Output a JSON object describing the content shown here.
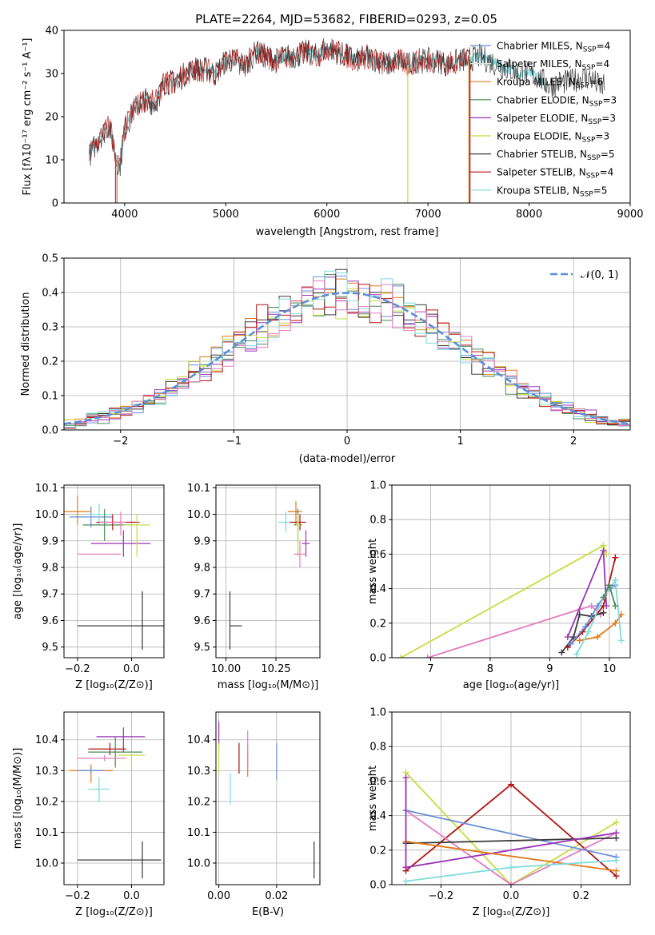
{
  "figure": {
    "title": "PLATE=2264, MJD=53682, FIBERID=0293, z=0.05"
  },
  "colors": {
    "Chabrier MILES": "#6a8fd8",
    "Salpeter MILES": "#e0e0e0",
    "Kroupa MILES": "#e07b1a",
    "Chabrier ELODIE": "#4a8a56",
    "Salpeter ELODIE": "#9a35b5",
    "Kroupa ELODIE": "#c8dc40",
    "Chabrier STELIB": "#3a3a3a",
    "Salpeter STELIB": "#b31212",
    "Kroupa STELIB": "#7fdcdc",
    "extra1": "#e37cbf",
    "extra2": "#8c8c8c",
    "normal": "#5b8fd8"
  },
  "chart_data": [
    {
      "id": "spectrum",
      "type": "line",
      "title": "PLATE=2264, MJD=53682, FIBERID=0293, z=0.05",
      "xlabel": "wavelength [Angstrom, rest frame]",
      "ylabel": "Flux [fλ10⁻¹⁷ erg cm⁻² s⁻¹ A⁻¹]",
      "xlim": [
        3400,
        9000
      ],
      "ylim": [
        0,
        40
      ],
      "xticks": [
        "4000",
        "5000",
        "6000",
        "7000",
        "8000",
        "9000"
      ],
      "yticks": [
        "0",
        "10",
        "20",
        "30",
        "40"
      ],
      "grid": false,
      "legend_loc": "top-right",
      "series_envelope": [
        [
          3650,
          11
        ],
        [
          3700,
          13
        ],
        [
          3780,
          16
        ],
        [
          3850,
          18
        ],
        [
          3900,
          12
        ],
        [
          3950,
          8
        ],
        [
          4000,
          17
        ],
        [
          4100,
          22
        ],
        [
          4200,
          24
        ],
        [
          4300,
          23
        ],
        [
          4400,
          28
        ],
        [
          4500,
          28
        ],
        [
          4600,
          30
        ],
        [
          4700,
          31
        ],
        [
          4800,
          31
        ],
        [
          4900,
          30
        ],
        [
          5000,
          33
        ],
        [
          5100,
          33
        ],
        [
          5200,
          32
        ],
        [
          5300,
          35
        ],
        [
          5400,
          34
        ],
        [
          5500,
          33
        ],
        [
          5600,
          34
        ],
        [
          5700,
          34
        ],
        [
          5800,
          35
        ],
        [
          5900,
          34
        ],
        [
          6000,
          36
        ],
        [
          6100,
          35
        ],
        [
          6200,
          34
        ],
        [
          6300,
          33
        ],
        [
          6400,
          34
        ],
        [
          6500,
          33
        ],
        [
          6600,
          32
        ],
        [
          6700,
          33
        ],
        [
          6800,
          32
        ],
        [
          6900,
          33
        ],
        [
          7000,
          33
        ],
        [
          7100,
          33
        ],
        [
          7200,
          32
        ],
        [
          7300,
          33
        ],
        [
          7400,
          33
        ],
        [
          7500,
          34
        ],
        [
          7600,
          33
        ],
        [
          7700,
          32
        ],
        [
          7800,
          31
        ],
        [
          7900,
          30
        ],
        [
          8000,
          30
        ],
        [
          8100,
          29
        ],
        [
          8200,
          27
        ],
        [
          8300,
          28
        ],
        [
          8400,
          28
        ],
        [
          8500,
          29
        ],
        [
          8600,
          29
        ],
        [
          8700,
          27
        ],
        [
          8800,
          27
        ]
      ],
      "legend": [
        "Chabrier MILES, N_SSP=4",
        "Salpeter MILES, N_SSP=4",
        "Kroupa MILES, N_SSP=6",
        "Chabrier ELODIE, N_SSP=3",
        "Salpeter ELODIE, N_SSP=3",
        "Kroupa ELODIE, N_SSP=3",
        "Chabrier STELIB, N_SSP=5",
        "Salpeter STELIB, N_SSP=4",
        "Kroupa STELIB, N_SSP=5"
      ]
    },
    {
      "id": "residuals",
      "type": "line",
      "xlabel": "(data-model)/error",
      "ylabel": "Normed distribution",
      "xlim": [
        -2.5,
        2.5
      ],
      "ylim": [
        0,
        0.5
      ],
      "xticks": [
        "−2",
        "−1",
        "0",
        "1",
        "2"
      ],
      "yticks": [
        "0.0",
        "0.1",
        "0.2",
        "0.3",
        "0.4",
        "0.5"
      ],
      "grid": true,
      "legend": [
        "𝒩(0, 1)"
      ],
      "legend_loc": "top-right"
    },
    {
      "id": "age_vs_Z",
      "type": "scatter",
      "xlabel": "Z [log₁₀(Z/Z⊙)]",
      "ylabel": "age  [log₁₀(age/yr)]",
      "xlim": [
        -0.25,
        0.12
      ],
      "ylim": [
        9.46,
        10.11
      ],
      "xticks": [
        "−0.2",
        "0.0"
      ],
      "yticks": [
        "9.5",
        "9.6",
        "9.7",
        "9.8",
        "9.9",
        "10.0",
        "10.1"
      ],
      "grid": true,
      "points": [
        {
          "c": "Kroupa MILES",
          "x": -0.2,
          "y": 10.01,
          "xe": [
            0.2,
            0.05
          ],
          "ye": [
            0.05,
            0.06
          ]
        },
        {
          "c": "Chabrier MILES",
          "x": -0.15,
          "y": 9.99,
          "xe": [
            0.08,
            0.08
          ],
          "ye": [
            0.04,
            0.04
          ]
        },
        {
          "c": "Kroupa STELIB",
          "x": -0.12,
          "y": 10.0,
          "xe": [
            0.04,
            0.04
          ],
          "ye": [
            0.04,
            0.04
          ]
        },
        {
          "c": "Chabrier ELODIE",
          "x": -0.1,
          "y": 9.96,
          "xe": [
            0.08,
            0.1
          ],
          "ye": [
            0.06,
            0.06
          ]
        },
        {
          "c": "Salpeter STELIB",
          "x": -0.07,
          "y": 9.97,
          "xe": [
            0.06,
            0.1
          ],
          "ye": [
            0.03,
            0.03
          ]
        },
        {
          "c": "extra1",
          "x": -0.04,
          "y": 9.97,
          "xe": [
            0.08,
            0.02
          ],
          "ye": [
            0.05,
            0.04
          ]
        },
        {
          "c": "Salpeter ELODIE",
          "x": -0.03,
          "y": 9.89,
          "xe": [
            0.12,
            0.1
          ],
          "ye": [
            0.05,
            0.05
          ]
        },
        {
          "c": "Kroupa ELODIE",
          "x": 0.02,
          "y": 9.96,
          "xe": [
            0.05,
            0.05
          ],
          "ye": [
            0.12,
            0.04
          ]
        },
        {
          "c": "extra1",
          "x": -0.1,
          "y": 9.85,
          "xe": [
            0.1,
            0.06
          ],
          "ye": [
            0.0,
            0.0
          ]
        },
        {
          "c": "Chabrier STELIB",
          "x": 0.04,
          "y": 9.58,
          "xe": [
            0.24,
            0.08
          ],
          "ye": [
            0.09,
            0.13
          ]
        }
      ]
    },
    {
      "id": "age_vs_mass",
      "type": "scatter",
      "xlabel": "mass [log₁₀(M/M⊙)]",
      "ylabel": "",
      "xlim": [
        9.95,
        10.47
      ],
      "ylim": [
        9.46,
        10.11
      ],
      "xticks": [
        "10.00",
        "10.25"
      ],
      "yticks": [
        "9.5",
        "9.6",
        "9.7",
        "9.8",
        "9.9",
        "10.0",
        "10.1"
      ],
      "grid": true,
      "points": [
        {
          "c": "Kroupa STELIB",
          "x": 10.3,
          "y": 9.97,
          "xe": [
            0.04,
            0.04
          ],
          "ye": [
            0.04,
            0.04
          ]
        },
        {
          "c": "Kroupa MILES",
          "x": 10.35,
          "y": 10.01,
          "xe": [
            0.04,
            0.03
          ],
          "ye": [
            0.05,
            0.04
          ]
        },
        {
          "c": "Salpeter STELIB",
          "x": 10.37,
          "y": 9.97,
          "xe": [
            0.05,
            0.03
          ],
          "ye": [
            0.03,
            0.03
          ]
        },
        {
          "c": "Chabrier ELODIE",
          "x": 10.36,
          "y": 9.96,
          "xe": [
            0.02,
            0.02
          ],
          "ye": [
            0.06,
            0.06
          ]
        },
        {
          "c": "Salpeter ELODIE",
          "x": 10.4,
          "y": 9.89,
          "xe": [
            0.02,
            0.02
          ],
          "ye": [
            0.05,
            0.05
          ]
        },
        {
          "c": "Kroupa ELODIE",
          "x": 10.36,
          "y": 9.96,
          "xe": [
            0.01,
            0.01
          ],
          "ye": [
            0.12,
            0.04
          ]
        },
        {
          "c": "extra1",
          "x": 10.37,
          "y": 9.85,
          "xe": [
            0.03,
            0.03
          ],
          "ye": [
            0.05,
            0.05
          ]
        },
        {
          "c": "Chabrier STELIB",
          "x": 10.02,
          "y": 9.58,
          "xe": [
            0.0,
            0.06
          ],
          "ye": [
            0.09,
            0.13
          ]
        }
      ]
    },
    {
      "id": "weight_vs_age",
      "type": "line",
      "xlabel": "age  [log₁₀(age/yr)]",
      "ylabel": "mass weight",
      "xlim": [
        6.35,
        10.35
      ],
      "ylim": [
        0,
        1
      ],
      "xticks": [
        "7",
        "8",
        "9",
        "10"
      ],
      "yticks": [
        "0.0",
        "0.2",
        "0.4",
        "0.6",
        "0.8",
        "1.0"
      ],
      "grid": true,
      "series": [
        {
          "c": "Kroupa ELODIE",
          "x": [
            6.5,
            9.9,
            9.95
          ],
          "y": [
            0.0,
            0.65,
            0.6
          ]
        },
        {
          "c": "extra1",
          "x": [
            6.95,
            9.5,
            9.7,
            9.85
          ],
          "y": [
            0.0,
            0.28,
            0.3,
            0.25
          ]
        },
        {
          "c": "Salpeter STELIB",
          "x": [
            9.3,
            9.55,
            9.9,
            10.1
          ],
          "y": [
            0.06,
            0.15,
            0.3,
            0.58
          ]
        },
        {
          "c": "Salpeter ELODIE",
          "x": [
            9.3,
            9.9,
            9.95
          ],
          "y": [
            0.12,
            0.62,
            0.3
          ]
        },
        {
          "c": "Chabrier STELIB",
          "x": [
            9.2,
            9.4,
            9.5,
            9.7,
            9.9
          ],
          "y": [
            0.03,
            0.12,
            0.25,
            0.24,
            0.26
          ]
        },
        {
          "c": "Kroupa MILES",
          "x": [
            9.5,
            9.8,
            10.1,
            10.2
          ],
          "y": [
            0.1,
            0.12,
            0.2,
            0.25
          ]
        },
        {
          "c": "Chabrier MILES",
          "x": [
            9.35,
            9.6,
            9.8,
            10.0,
            10.1
          ],
          "y": [
            0.08,
            0.18,
            0.3,
            0.4,
            0.42
          ]
        },
        {
          "c": "Kroupa STELIB",
          "x": [
            9.45,
            9.65,
            9.9,
            10.1,
            10.2
          ],
          "y": [
            0.02,
            0.15,
            0.35,
            0.45,
            0.1
          ]
        },
        {
          "c": "Chabrier ELODIE",
          "x": [
            9.9,
            10.0,
            10.1
          ],
          "y": [
            0.35,
            0.42,
            0.3
          ]
        }
      ]
    },
    {
      "id": "mass_vs_Z",
      "type": "scatter",
      "xlabel": "Z [log₁₀(Z/Z⊙)]",
      "ylabel": "mass [log₁₀(M/M⊙)]",
      "xlim": [
        -0.25,
        0.12
      ],
      "ylim": [
        9.93,
        10.49
      ],
      "xticks": [
        "−0.2",
        "0.0"
      ],
      "yticks": [
        "10.0",
        "10.1",
        "10.2",
        "10.3",
        "10.4"
      ],
      "grid": true,
      "points": [
        {
          "c": "Salpeter ELODIE",
          "x": -0.03,
          "y": 10.41,
          "xe": [
            0.1,
            0.08
          ],
          "ye": [
            0.05,
            0.03
          ]
        },
        {
          "c": "Salpeter STELIB",
          "x": -0.08,
          "y": 10.37,
          "xe": [
            0.08,
            0.06
          ],
          "ye": [
            0.02,
            0.02
          ]
        },
        {
          "c": "Chabrier ELODIE",
          "x": -0.06,
          "y": 10.36,
          "xe": [
            0.1,
            0.1
          ],
          "ye": [
            0.05,
            0.05
          ]
        },
        {
          "c": "Kroupa ELODIE",
          "x": 0.0,
          "y": 10.35,
          "xe": [
            0.05,
            0.05
          ],
          "ye": [
            0.05,
            0.01
          ]
        },
        {
          "c": "extra1",
          "x": -0.1,
          "y": 10.34,
          "xe": [
            0.1,
            0.08
          ],
          "ye": [
            0.01,
            0.01
          ]
        },
        {
          "c": "Kroupa MILES",
          "x": -0.15,
          "y": 10.3,
          "xe": [
            0.08,
            0.08
          ],
          "ye": [
            0.04,
            0.02
          ]
        },
        {
          "c": "Chabrier MILES",
          "x": -0.15,
          "y": 10.3,
          "xe": [
            0.05,
            0.05
          ],
          "ye": [
            0.01,
            0.01
          ]
        },
        {
          "c": "Kroupa STELIB",
          "x": -0.12,
          "y": 10.24,
          "xe": [
            0.04,
            0.04
          ],
          "ye": [
            0.04,
            0.04
          ]
        },
        {
          "c": "Chabrier STELIB",
          "x": 0.04,
          "y": 10.01,
          "xe": [
            0.24,
            0.07
          ],
          "ye": [
            0.06,
            0.06
          ]
        }
      ]
    },
    {
      "id": "mass_vs_ebv",
      "type": "scatter",
      "xlabel": "E(B-V)",
      "ylabel": "",
      "xlim": [
        -0.001,
        0.035
      ],
      "ylim": [
        9.93,
        10.49
      ],
      "xticks": [
        "0.00",
        "0.02"
      ],
      "yticks": [
        "10.0",
        "10.1",
        "10.2",
        "10.3",
        "10.4"
      ],
      "grid": true,
      "points": [
        {
          "c": "Salpeter ELODIE",
          "x": 0.0,
          "y": 10.42,
          "xe": [
            0,
            0
          ],
          "ye": [
            0.04,
            0.04
          ]
        },
        {
          "c": "Kroupa ELODIE",
          "x": 0.0,
          "y": 10.34,
          "xe": [
            0,
            0
          ],
          "ye": [
            0.05,
            0.05
          ]
        },
        {
          "c": "Kroupa STELIB",
          "x": 0.004,
          "y": 10.24,
          "xe": [
            0,
            0
          ],
          "ye": [
            0.05,
            0.05
          ]
        },
        {
          "c": "Salpeter STELIB",
          "x": 0.007,
          "y": 10.34,
          "xe": [
            0,
            0
          ],
          "ye": [
            0.05,
            0.05
          ]
        },
        {
          "c": "Kroupa MILES",
          "x": 0.01,
          "y": 10.33,
          "xe": [
            0,
            0
          ],
          "ye": [
            0.05,
            0.05
          ]
        },
        {
          "c": "extra1",
          "x": 0.01,
          "y": 10.37,
          "xe": [
            0,
            0
          ],
          "ye": [
            0.06,
            0.06
          ]
        },
        {
          "c": "Chabrier MILES",
          "x": 0.02,
          "y": 10.33,
          "xe": [
            0,
            0
          ],
          "ye": [
            0.06,
            0.06
          ]
        },
        {
          "c": "Chabrier STELIB",
          "x": 0.033,
          "y": 10.01,
          "xe": [
            0,
            0
          ],
          "ye": [
            0.06,
            0.06
          ]
        }
      ]
    },
    {
      "id": "weight_vs_Z",
      "type": "line",
      "xlabel": "Z [log₁₀(Z/Z⊙)]",
      "ylabel": "mass weight",
      "xlim": [
        -0.34,
        0.34
      ],
      "ylim": [
        0,
        1
      ],
      "xticks": [
        "−0.2",
        "0.0",
        "0.2"
      ],
      "yticks": [
        "0.0",
        "0.2",
        "0.4",
        "0.6",
        "0.8",
        "1.0"
      ],
      "grid": true,
      "series": [
        {
          "c": "Kroupa ELODIE",
          "x": [
            -0.3,
            0.0,
            0.3
          ],
          "y": [
            0.65,
            0.0,
            0.36
          ]
        },
        {
          "c": "Salpeter STELIB",
          "x": [
            -0.3,
            0.0,
            0.3
          ],
          "y": [
            0.08,
            0.58,
            0.05
          ]
        },
        {
          "c": "extra1",
          "x": [
            -0.3,
            0.0,
            0.3
          ],
          "y": [
            0.43,
            0.0,
            0.3
          ]
        },
        {
          "c": "Chabrier MILES",
          "x": [
            -0.3,
            0.3
          ],
          "y": [
            0.43,
            0.16
          ]
        },
        {
          "c": "Chabrier STELIB",
          "x": [
            -0.3,
            0.3
          ],
          "y": [
            0.24,
            0.27
          ]
        },
        {
          "c": "Salpeter ELODIE",
          "x": [
            -0.3,
            0.3
          ],
          "y": [
            0.1,
            0.3
          ]
        },
        {
          "c": "Kroupa MILES",
          "x": [
            -0.3,
            0.3
          ],
          "y": [
            0.25,
            0.08
          ]
        },
        {
          "c": "Kroupa STELIB",
          "x": [
            -0.3,
            0.0,
            0.3
          ],
          "y": [
            0.02,
            0.1,
            0.14
          ]
        },
        {
          "c": "Salpeter ELODIE",
          "x": [
            -0.3,
            -0.3
          ],
          "y": [
            0.1,
            0.62
          ]
        }
      ]
    }
  ]
}
